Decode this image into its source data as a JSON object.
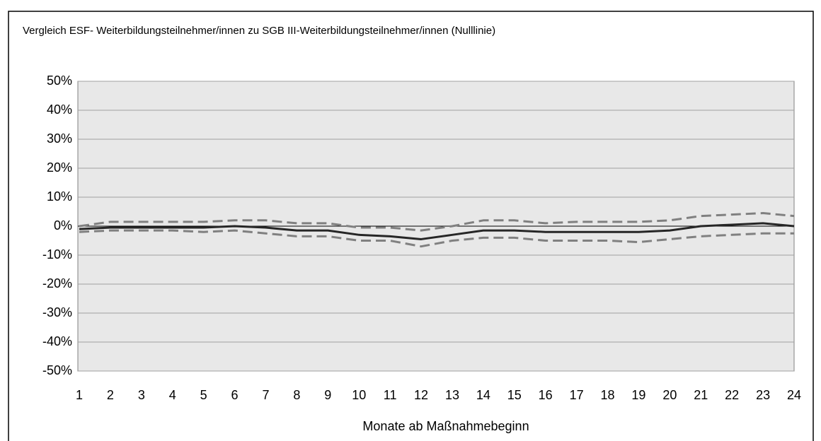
{
  "chart_data": {
    "type": "line",
    "subtitle": "Vergleich ESF- Weiterbildungsteilnehmer/innen zu SGB III-Weiterbildungsteilnehmer/innen (Nulllinie)",
    "x_label": "Monate ab Maßnahmebeginn",
    "categories": [
      "1",
      "2",
      "3",
      "4",
      "5",
      "6",
      "7",
      "8",
      "9",
      "10",
      "11",
      "12",
      "13",
      "14",
      "15",
      "16",
      "17",
      "18",
      "19",
      "20",
      "21",
      "22",
      "23",
      "24"
    ],
    "series": [
      {
        "color": "#808080",
        "dashed": true,
        "values": [
          0,
          1.5,
          1.5,
          1.5,
          1.5,
          2,
          2,
          1,
          1,
          -0.5,
          -0.5,
          -1.5,
          0,
          2,
          2,
          1,
          1.5,
          1.5,
          1.5,
          2,
          3.5,
          4,
          4.5,
          3.5
        ]
      },
      {
        "color": "#808080",
        "dashed": true,
        "values": [
          -2,
          -1.5,
          -1.5,
          -1.5,
          -2,
          -1.5,
          -2.5,
          -3.5,
          -3.5,
          -5,
          -5,
          -7,
          -5,
          -4,
          -4,
          -5,
          -5,
          -5,
          -5.5,
          -4.5,
          -3.5,
          -3,
          -2.5,
          -2.5
        ]
      },
      {
        "color": "#262626",
        "dashed": false,
        "values": [
          -1,
          -0.5,
          -0.5,
          -0.5,
          -0.5,
          0,
          -0.5,
          -1.5,
          -1.5,
          -3,
          -3.5,
          -4.5,
          -3,
          -1.5,
          -1.5,
          -2,
          -2,
          -2,
          -2,
          -1.5,
          0,
          0.5,
          1,
          0
        ]
      }
    ],
    "ylim": [
      -50,
      50
    ],
    "yticks": [
      {
        "value": -50,
        "label": "-50%"
      },
      {
        "value": -40,
        "label": "-40%"
      },
      {
        "value": -30,
        "label": "-30%"
      },
      {
        "value": -20,
        "label": "-20%"
      },
      {
        "value": -10,
        "label": "-10%"
      },
      {
        "value": 0,
        "label": "0%"
      },
      {
        "value": 10,
        "label": "10%"
      },
      {
        "value": 20,
        "label": "20%"
      },
      {
        "value": 30,
        "label": "30%"
      },
      {
        "value": 40,
        "label": "40%"
      },
      {
        "value": 50,
        "label": "50%"
      }
    ],
    "grid": true,
    "background": "#e8e8e8"
  }
}
